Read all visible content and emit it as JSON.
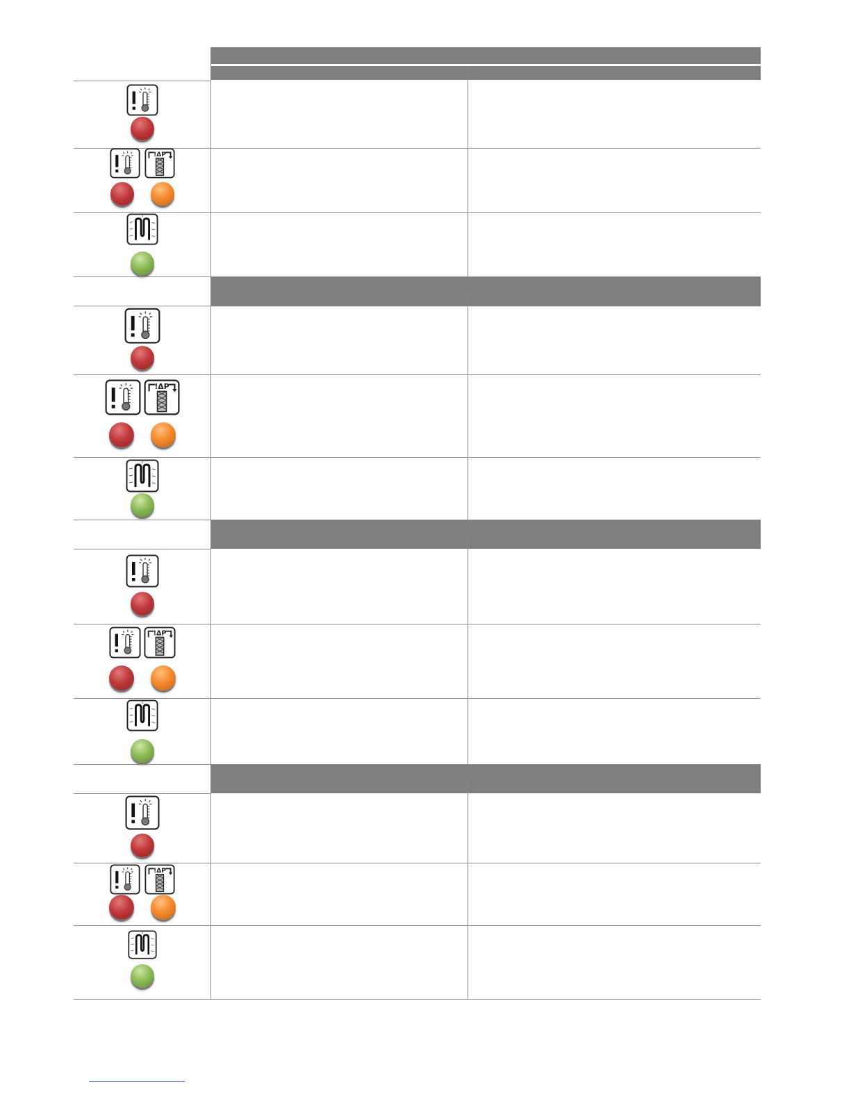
{
  "colors": {
    "header_bar": "#7f7f7f",
    "alarm_red": "#c0393b",
    "warning_orange": "#f58a2e",
    "ok_green": "#8dbb57"
  },
  "sections": [
    {
      "header_title": "",
      "column_headers": [
        "",
        ""
      ],
      "rows": [
        {
          "icons": [
            "temperature-alarm-icon"
          ],
          "indicators": [
            "red"
          ],
          "col1": "",
          "col2": ""
        },
        {
          "icons": [
            "temperature-alarm-icon",
            "filter-pressure-icon"
          ],
          "indicators": [
            "red",
            "orange"
          ],
          "col1": "",
          "col2": ""
        },
        {
          "icons": [
            "heater-icon"
          ],
          "indicators": [
            "green"
          ],
          "col1": "",
          "col2": ""
        }
      ]
    },
    {
      "header_title": "",
      "column_headers": [
        "",
        ""
      ],
      "rows": [
        {
          "icons": [
            "temperature-alarm-icon"
          ],
          "indicators": [
            "red"
          ],
          "col1": "",
          "col2": ""
        },
        {
          "icons": [
            "temperature-alarm-icon",
            "filter-pressure-icon"
          ],
          "indicators": [
            "red",
            "orange"
          ],
          "col1": "",
          "col2": ""
        },
        {
          "icons": [
            "heater-icon"
          ],
          "indicators": [
            "green"
          ],
          "col1": "",
          "col2": ""
        }
      ]
    },
    {
      "header_title": "",
      "column_headers": [
        "",
        ""
      ],
      "rows": [
        {
          "icons": [
            "temperature-alarm-icon"
          ],
          "indicators": [
            "red"
          ],
          "col1": "",
          "col2": ""
        },
        {
          "icons": [
            "temperature-alarm-icon",
            "filter-pressure-icon"
          ],
          "indicators": [
            "red",
            "orange"
          ],
          "col1": "",
          "col2": ""
        },
        {
          "icons": [
            "heater-icon"
          ],
          "indicators": [
            "green"
          ],
          "col1": "",
          "col2": ""
        }
      ]
    },
    {
      "header_title": "",
      "column_headers": [
        "",
        ""
      ],
      "rows": [
        {
          "icons": [
            "temperature-alarm-icon"
          ],
          "indicators": [
            "red"
          ],
          "col1": "",
          "col2": ""
        },
        {
          "icons": [
            "temperature-alarm-icon",
            "filter-pressure-icon"
          ],
          "indicators": [
            "red",
            "orange"
          ],
          "col1": "",
          "col2": ""
        },
        {
          "icons": [
            "heater-icon"
          ],
          "indicators": [
            "green"
          ],
          "col1": "",
          "col2": ""
        }
      ]
    }
  ]
}
